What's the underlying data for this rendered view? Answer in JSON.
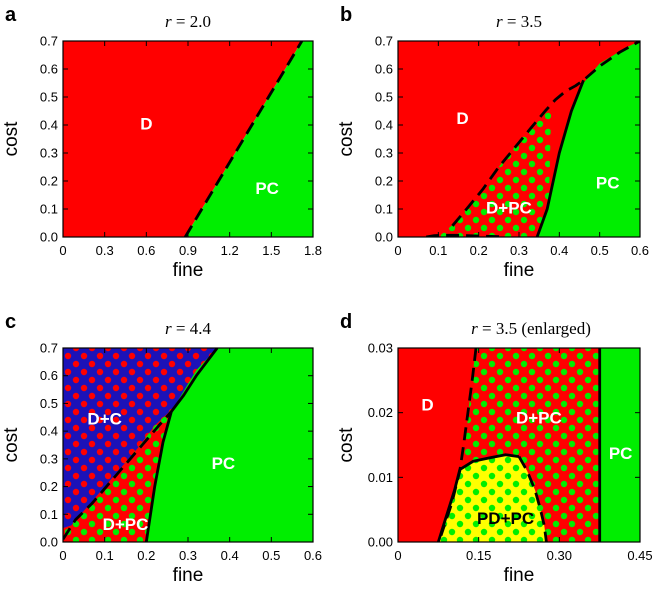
{
  "colors": {
    "D": "#ff0000",
    "PC": "#00ee00",
    "C": "#1c12b8",
    "PD": "#ffff00",
    "axis": "#000000",
    "label_white": "#ffffff",
    "label_black": "#000000"
  },
  "chart_data": [
    {
      "type": "heatmap",
      "panel": "a",
      "title": "r = 2.0",
      "title_var": "r",
      "title_rest": " = 2.0",
      "xlabel": "fine",
      "ylabel": "cost",
      "xlim": [
        0,
        1.8
      ],
      "ylim": [
        0,
        0.7
      ],
      "xticks": [
        "0",
        "0.3",
        "0.6",
        "0.9",
        "1.2",
        "1.5",
        "1.8"
      ],
      "yticks": [
        "0.0",
        "0.1",
        "0.2",
        "0.3",
        "0.4",
        "0.5",
        "0.6",
        "0.7"
      ],
      "regions": [
        {
          "name": "D",
          "fill": "D",
          "dots": null,
          "points": [
            [
              0,
              0
            ],
            [
              0.88,
              0
            ],
            [
              1.72,
              0.7
            ],
            [
              0,
              0.7
            ]
          ]
        },
        {
          "name": "PC",
          "fill": "PC",
          "dots": null,
          "points": [
            [
              0.88,
              0
            ],
            [
              1.8,
              0
            ],
            [
              1.8,
              0.7
            ],
            [
              1.72,
              0.7
            ]
          ]
        }
      ],
      "boundaries": [
        {
          "style": "dashed",
          "points": [
            [
              0.88,
              0
            ],
            [
              1.72,
              0.7
            ]
          ]
        }
      ],
      "labels": [
        {
          "text": "D",
          "x": 0.6,
          "y": 0.4,
          "color": "label_white"
        },
        {
          "text": "PC",
          "x": 1.47,
          "y": 0.17,
          "color": "label_white"
        }
      ]
    },
    {
      "type": "heatmap",
      "panel": "b",
      "title": "r = 3.5",
      "title_var": "r",
      "title_rest": " = 3.5",
      "xlabel": "fine",
      "ylabel": "cost",
      "xlim": [
        0,
        0.6
      ],
      "ylim": [
        0,
        0.7
      ],
      "xticks": [
        "0",
        "0.1",
        "0.2",
        "0.3",
        "0.4",
        "0.5",
        "0.6"
      ],
      "yticks": [
        "0.0",
        "0.1",
        "0.2",
        "0.3",
        "0.4",
        "0.5",
        "0.6",
        "0.7"
      ],
      "regions": [
        {
          "name": "D",
          "fill": "D",
          "dots": null,
          "points": [
            [
              0,
              0
            ],
            [
              0,
              0.7
            ],
            [
              0.6,
              0.7
            ],
            [
              0.6,
              0
            ]
          ]
        },
        {
          "name": "D+PC",
          "fill": "D",
          "dots": "PC",
          "points": [
            [
              0.1,
              0
            ],
            [
              0.133,
              0.04
            ],
            [
              0.167,
              0.1
            ],
            [
              0.208,
              0.17
            ],
            [
              0.25,
              0.25
            ],
            [
              0.294,
              0.33
            ],
            [
              0.338,
              0.41
            ],
            [
              0.372,
              0.47
            ],
            [
              0.38,
              0.47
            ],
            [
              0.372,
              0
            ],
            [
              0.08,
              0
            ]
          ]
        },
        {
          "name": "PC",
          "fill": "PC",
          "dots": null,
          "points": [
            [
              0.345,
              0
            ],
            [
              0.6,
              0
            ],
            [
              0.6,
              0.7
            ],
            [
              0.57,
              0.68
            ],
            [
              0.5,
              0.62
            ],
            [
              0.46,
              0.55
            ],
            [
              0.43,
              0.45
            ],
            [
              0.4,
              0.3
            ],
            [
              0.37,
              0.1
            ]
          ]
        }
      ],
      "boundaries": [
        {
          "style": "dashed",
          "points": [
            [
              0.135,
              0.04
            ],
            [
              0.17,
              0.1
            ],
            [
              0.21,
              0.17
            ],
            [
              0.25,
              0.25
            ],
            [
              0.29,
              0.32
            ],
            [
              0.33,
              0.39
            ],
            [
              0.365,
              0.45
            ],
            [
              0.39,
              0.49
            ],
            [
              0.415,
              0.52
            ],
            [
              0.44,
              0.54
            ],
            [
              0.46,
              0.56
            ],
            [
              0.5,
              0.61
            ],
            [
              0.55,
              0.66
            ],
            [
              0.6,
              0.7
            ]
          ]
        },
        {
          "style": "solid",
          "points": [
            [
              0.345,
              0
            ],
            [
              0.37,
              0.1
            ],
            [
              0.4,
              0.3
            ],
            [
              0.43,
              0.45
            ],
            [
              0.46,
              0.56
            ]
          ]
        },
        {
          "style": "dashed",
          "points": [
            [
              0.07,
              0
            ],
            [
              0.09,
              0.005
            ],
            [
              0.11,
              0.006
            ],
            [
              0.13,
              0.006
            ],
            [
              0.15,
              0.006
            ],
            [
              0.17,
              0.005
            ],
            [
              0.19,
              0.004
            ],
            [
              0.21,
              0.003
            ],
            [
              0.23,
              0.002
            ],
            [
              0.25,
              0.001
            ],
            [
              0.265,
              0
            ]
          ]
        }
      ],
      "labels": [
        {
          "text": "D",
          "x": 0.16,
          "y": 0.42,
          "color": "label_white"
        },
        {
          "text": "D+PC",
          "x": 0.275,
          "y": 0.1,
          "color": "label_white"
        },
        {
          "text": "PC",
          "x": 0.52,
          "y": 0.19,
          "color": "label_white"
        }
      ]
    },
    {
      "type": "heatmap",
      "panel": "c",
      "title": "r = 4.4",
      "title_var": "r",
      "title_rest": " = 4.4",
      "xlabel": "fine",
      "ylabel": "cost",
      "xlim": [
        0,
        0.6
      ],
      "ylim": [
        0,
        0.7
      ],
      "xticks": [
        "0",
        "0.1",
        "0.2",
        "0.3",
        "0.4",
        "0.5",
        "0.6"
      ],
      "yticks": [
        "0.0",
        "0.1",
        "0.2",
        "0.3",
        "0.4",
        "0.5",
        "0.6",
        "0.7"
      ],
      "regions": [
        {
          "name": "D+PC",
          "fill": "D",
          "dots": "PC",
          "points": [
            [
              0,
              0
            ],
            [
              0.2,
              0
            ],
            [
              0.26,
              0.47
            ],
            [
              0.32,
              0.62
            ],
            [
              0.37,
              0.7
            ],
            [
              0,
              0.7
            ]
          ]
        },
        {
          "name": "D+C",
          "fill": "C",
          "dots": "D",
          "points": [
            [
              0,
              0.05
            ],
            [
              0.02,
              0.06
            ],
            [
              0.06,
              0.13
            ],
            [
              0.1,
              0.2
            ],
            [
              0.14,
              0.27
            ],
            [
              0.18,
              0.34
            ],
            [
              0.22,
              0.42
            ],
            [
              0.255,
              0.47
            ],
            [
              0.28,
              0.51
            ],
            [
              0.3,
              0.55
            ],
            [
              0.33,
              0.6
            ],
            [
              0.36,
              0.66
            ],
            [
              0.39,
              0.7
            ],
            [
              0,
              0.7
            ]
          ]
        },
        {
          "name": "PC",
          "fill": "PC",
          "dots": null,
          "points": [
            [
              0.2,
              0
            ],
            [
              0.6,
              0
            ],
            [
              0.6,
              0.7
            ],
            [
              0.37,
              0.7
            ],
            [
              0.32,
              0.62
            ],
            [
              0.26,
              0.47
            ],
            [
              0.24,
              0.36
            ],
            [
              0.22,
              0.2
            ]
          ]
        }
      ],
      "boundaries": [
        {
          "style": "dashed",
          "points": [
            [
              0,
              0.01
            ],
            [
              0.03,
              0.08
            ],
            [
              0.07,
              0.14
            ],
            [
              0.11,
              0.21
            ],
            [
              0.15,
              0.28
            ],
            [
              0.19,
              0.35
            ],
            [
              0.23,
              0.42
            ],
            [
              0.26,
              0.47
            ]
          ]
        },
        {
          "style": "solid",
          "points": [
            [
              0.2,
              0
            ],
            [
              0.22,
              0.2
            ],
            [
              0.24,
              0.36
            ],
            [
              0.26,
              0.47
            ],
            [
              0.29,
              0.53
            ],
            [
              0.32,
              0.6
            ],
            [
              0.37,
              0.7
            ]
          ]
        }
      ],
      "labels": [
        {
          "text": "D+C",
          "x": 0.1,
          "y": 0.44,
          "color": "label_white"
        },
        {
          "text": "D+PC",
          "x": 0.15,
          "y": 0.06,
          "color": "label_white"
        },
        {
          "text": "PC",
          "x": 0.385,
          "y": 0.28,
          "color": "label_white"
        }
      ]
    },
    {
      "type": "heatmap",
      "panel": "d",
      "title": "r = 3.5 (enlarged)",
      "title_var": "r",
      "title_rest": " = 3.5 (enlarged)",
      "xlabel": "fine",
      "ylabel": "cost",
      "xlim": [
        0,
        0.45
      ],
      "ylim": [
        0,
        0.03
      ],
      "xticks": [
        "0",
        "0.15",
        "0.30",
        "0.45"
      ],
      "yticks": [
        "0.00",
        "0.01",
        "0.02",
        "0.03"
      ],
      "regions": [
        {
          "name": "D",
          "fill": "D",
          "dots": null,
          "points": [
            [
              0,
              0
            ],
            [
              0,
              0.03
            ],
            [
              0.45,
              0.03
            ],
            [
              0.45,
              0
            ]
          ]
        },
        {
          "name": "D+PC",
          "fill": "D",
          "dots": "PC",
          "points": [
            [
              0.145,
              0.03
            ],
            [
              0.375,
              0.03
            ],
            [
              0.375,
              0
            ],
            [
              0.072,
              0
            ],
            [
              0.09,
              0.003
            ],
            [
              0.105,
              0.006
            ],
            [
              0.115,
              0.01
            ],
            [
              0.124,
              0.014
            ],
            [
              0.131,
              0.02
            ],
            [
              0.137,
              0.025
            ]
          ]
        },
        {
          "name": "PC",
          "fill": "PC",
          "dots": null,
          "points": [
            [
              0.375,
              0
            ],
            [
              0.45,
              0
            ],
            [
              0.45,
              0.03
            ],
            [
              0.375,
              0.03
            ]
          ]
        },
        {
          "name": "PD+PC",
          "fill": "PD",
          "dots": "PC",
          "points": [
            [
              0.075,
              0
            ],
            [
              0.09,
              0.004
            ],
            [
              0.105,
              0.008
            ],
            [
              0.115,
              0.0112
            ],
            [
              0.14,
              0.0125
            ],
            [
              0.17,
              0.013
            ],
            [
              0.2,
              0.0135
            ],
            [
              0.225,
              0.0132
            ],
            [
              0.24,
              0.011
            ],
            [
              0.255,
              0.008
            ],
            [
              0.265,
              0.005
            ],
            [
              0.272,
              0.0025
            ],
            [
              0.276,
              0
            ]
          ]
        }
      ],
      "boundaries": [
        {
          "style": "dashed",
          "points": [
            [
              0.145,
              0.03
            ],
            [
              0.138,
              0.025
            ],
            [
              0.13,
              0.02
            ],
            [
              0.122,
              0.015
            ],
            [
              0.115,
              0.011
            ],
            [
              0.1,
              0.006
            ],
            [
              0.08,
              0.001
            ]
          ]
        },
        {
          "style": "solid",
          "points": [
            [
              0.075,
              0
            ],
            [
              0.09,
              0.004
            ],
            [
              0.105,
              0.008
            ],
            [
              0.115,
              0.0112
            ],
            [
              0.14,
              0.0125
            ],
            [
              0.17,
              0.013
            ],
            [
              0.2,
              0.0135
            ],
            [
              0.225,
              0.0132
            ]
          ]
        },
        {
          "style": "dashed",
          "points": [
            [
              0.225,
              0.0132
            ],
            [
              0.24,
              0.011
            ],
            [
              0.255,
              0.008
            ],
            [
              0.265,
              0.005
            ],
            [
              0.272,
              0.0025
            ],
            [
              0.276,
              0
            ]
          ]
        },
        {
          "style": "solid",
          "points": [
            [
              0.375,
              0
            ],
            [
              0.375,
              0.03
            ]
          ]
        }
      ],
      "labels": [
        {
          "text": "D",
          "x": 0.055,
          "y": 0.021,
          "color": "label_white"
        },
        {
          "text": "D+PC",
          "x": 0.262,
          "y": 0.019,
          "color": "label_white"
        },
        {
          "text": "PC",
          "x": 0.414,
          "y": 0.0135,
          "color": "label_white"
        },
        {
          "text": "PD+PC",
          "x": 0.2,
          "y": 0.0035,
          "color": "label_black"
        }
      ]
    }
  ]
}
